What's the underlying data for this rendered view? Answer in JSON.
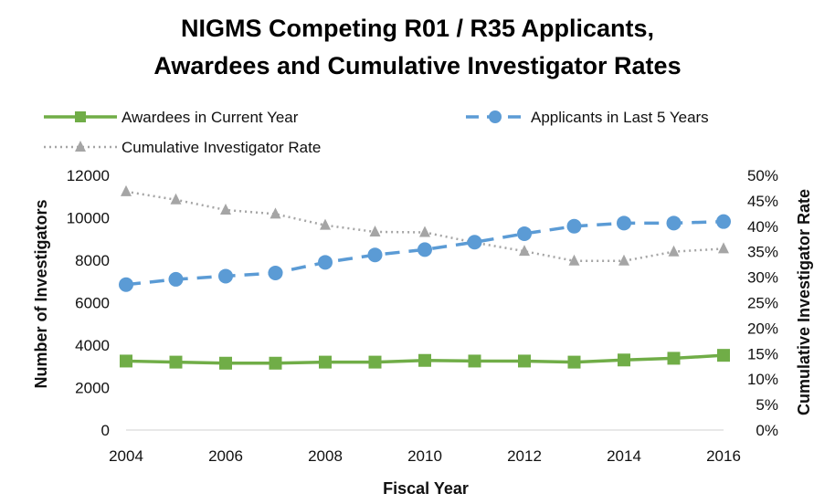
{
  "chart_data": {
    "type": "line",
    "title_line1": "NIGMS Competing R01 / R35 Applicants,",
    "title_line2": "Awardees and Cumulative Investigator Rates",
    "xlabel": "Fiscal Year",
    "ylabel": "Number of Investigators",
    "y2label": "Cumulative Investigator Rate",
    "x": [
      2004,
      2005,
      2006,
      2007,
      2008,
      2009,
      2010,
      2011,
      2012,
      2013,
      2014,
      2015,
      2016
    ],
    "xticks": [
      "2004",
      "2006",
      "2008",
      "2010",
      "2012",
      "2014",
      "2016"
    ],
    "ylim": [
      0,
      12000
    ],
    "yticks": [
      "0",
      "2000",
      "4000",
      "6000",
      "8000",
      "10000",
      "12000"
    ],
    "y2lim": [
      0,
      50
    ],
    "y2ticks": [
      "0%",
      "5%",
      "10%",
      "15%",
      "20%",
      "25%",
      "30%",
      "35%",
      "40%",
      "45%",
      "50%"
    ],
    "legend_position": "top",
    "grid": false,
    "series": [
      {
        "name": "Awardees in Current Year",
        "axis": "left",
        "color": "#70ad47",
        "style": "solid",
        "marker": "square",
        "values": [
          3250,
          3200,
          3150,
          3150,
          3200,
          3200,
          3280,
          3250,
          3250,
          3200,
          3300,
          3380,
          3520
        ]
      },
      {
        "name": "Applicants in Last 5 Years",
        "axis": "left",
        "color": "#5b9bd5",
        "style": "dashed",
        "marker": "circle",
        "values": [
          6850,
          7100,
          7250,
          7400,
          7900,
          8250,
          8500,
          8850,
          9250,
          9600,
          9750,
          9750,
          9820
        ]
      },
      {
        "name": "Cumulative Investigator Rate",
        "axis": "right",
        "color": "#a5a5a5",
        "style": "dotted",
        "marker": "triangle",
        "values": [
          46.8,
          45.2,
          43.2,
          42.4,
          40.2,
          38.9,
          38.8,
          36.8,
          35.1,
          33.2,
          33.2,
          35.0,
          35.6
        ]
      }
    ]
  }
}
